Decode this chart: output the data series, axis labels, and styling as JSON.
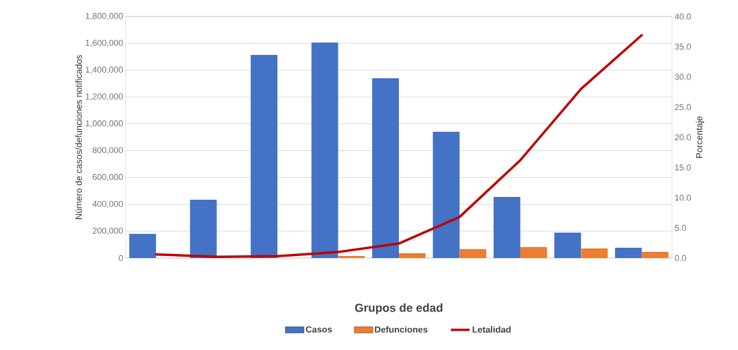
{
  "chart_data": {
    "type": "bar",
    "xlabel": "Grupos de edad",
    "ylabel": "Número de casos/defunciones notificados",
    "y2label": "Porcentaje",
    "categories": [
      null,
      null,
      null,
      null,
      null,
      null,
      null,
      null,
      null
    ],
    "series": [
      {
        "name": "Casos",
        "color": "#4472c4",
        "values": [
          180000,
          435000,
          1514000,
          1606000,
          1340000,
          941000,
          455000,
          189000,
          77000
        ]
      },
      {
        "name": "Defunciones",
        "color": "#ed7d31",
        "values": [
          null,
          null,
          null,
          15000,
          36000,
          66000,
          82000,
          72000,
          46000
        ]
      },
      {
        "name": "Letalidad",
        "type": "line",
        "axis": "y2",
        "color": "#c00000",
        "values": [
          0.6,
          0.2,
          0.3,
          1.0,
          2.4,
          6.8,
          16.2,
          28.0,
          36.9
        ]
      }
    ],
    "ylim": [
      0,
      1800000
    ],
    "yticks": [
      {
        "value": 0,
        "label": "0"
      },
      {
        "value": 200000,
        "label": "200,000"
      },
      {
        "value": 400000,
        "label": "400,000"
      },
      {
        "value": 600000,
        "label": "600,000"
      },
      {
        "value": 800000,
        "label": "800,000"
      },
      {
        "value": 1000000,
        "label": "1,000,000"
      },
      {
        "value": 1200000,
        "label": "1,200,000"
      },
      {
        "value": 1400000,
        "label": "1,400,000"
      },
      {
        "value": 1600000,
        "label": "1,600,000"
      },
      {
        "value": 1800000,
        "label": "1,800,000"
      }
    ],
    "y2lim": [
      0,
      40
    ],
    "y2ticks": [
      {
        "value": 0,
        "label": "0.0"
      },
      {
        "value": 5,
        "label": "5.0"
      },
      {
        "value": 10,
        "label": "10.0"
      },
      {
        "value": 15,
        "label": "15.0"
      },
      {
        "value": 20,
        "label": "20.0"
      },
      {
        "value": 25,
        "label": "25.0"
      },
      {
        "value": 30,
        "label": "30.0"
      },
      {
        "value": 35,
        "label": "35.0"
      },
      {
        "value": 40,
        "label": "40.0"
      }
    ],
    "grid": "y",
    "legend": "bottom",
    "marker": "none"
  }
}
